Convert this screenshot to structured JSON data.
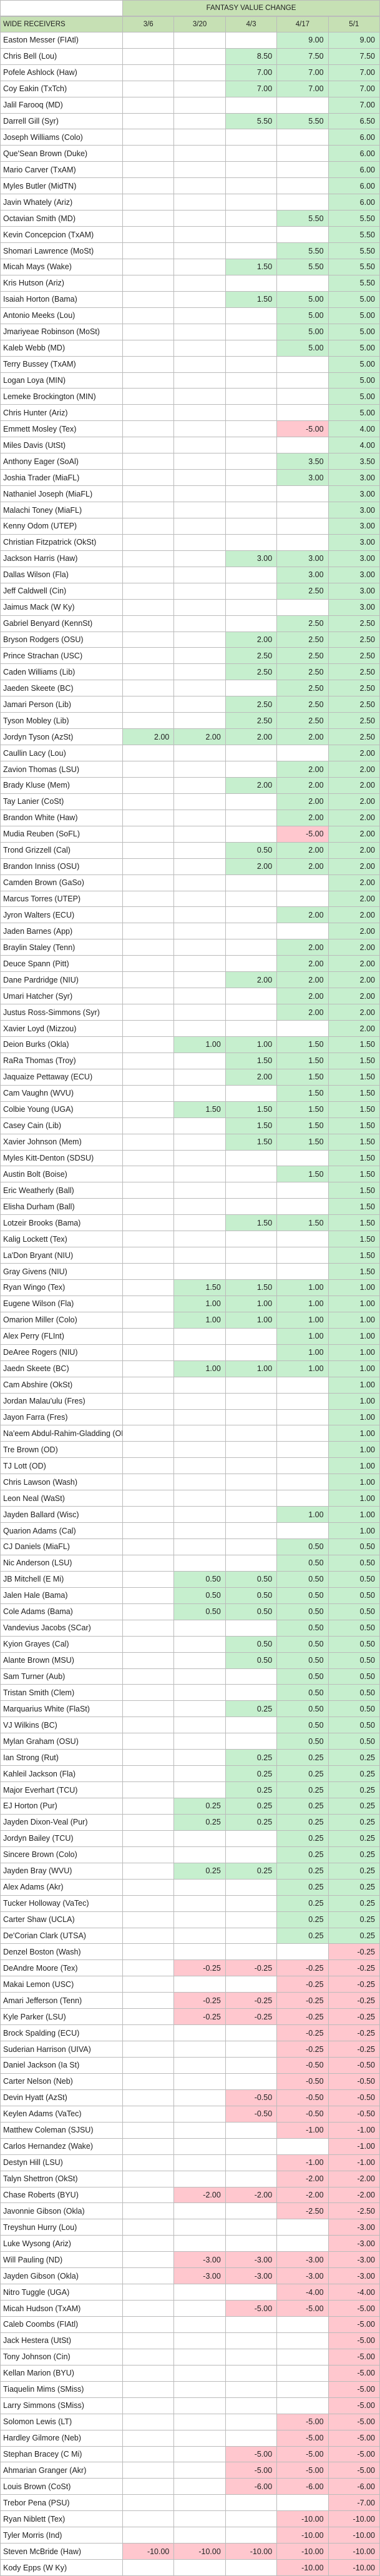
{
  "table": {
    "group_header": "FANTASY VALUE CHANGE",
    "columns": [
      "WIDE RECEIVERS",
      "3/6",
      "3/20",
      "4/3",
      "4/17",
      "5/1"
    ],
    "rows": [
      [
        "Easton Messer (FIAtl)",
        null,
        null,
        null,
        "9.00",
        "9.00"
      ],
      [
        "Chris Bell (Lou)",
        null,
        null,
        "8.50",
        "7.50",
        "7.50"
      ],
      [
        "Pofele Ashlock (Haw)",
        null,
        null,
        "7.00",
        "7.00",
        "7.00"
      ],
      [
        "Coy Eakin (TxTch)",
        null,
        null,
        "7.00",
        "7.00",
        "7.00"
      ],
      [
        "Jalil Farooq (MD)",
        null,
        null,
        null,
        null,
        "7.00"
      ],
      [
        "Darrell Gill (Syr)",
        null,
        null,
        "5.50",
        "5.50",
        "6.50"
      ],
      [
        "Joseph Williams (Colo)",
        null,
        null,
        null,
        null,
        "6.00"
      ],
      [
        "Que'Sean Brown (Duke)",
        null,
        null,
        null,
        null,
        "6.00"
      ],
      [
        "Mario Carver (TxAM)",
        null,
        null,
        null,
        null,
        "6.00"
      ],
      [
        "Myles Butler (MidTN)",
        null,
        null,
        null,
        null,
        "6.00"
      ],
      [
        "Javin Whately (Ariz)",
        null,
        null,
        null,
        null,
        "6.00"
      ],
      [
        "Octavian Smith (MD)",
        null,
        null,
        null,
        "5.50",
        "5.50"
      ],
      [
        "Kevin Concepcion (TxAM)",
        null,
        null,
        null,
        null,
        "5.50"
      ],
      [
        "Shomari Lawrence (MoSt)",
        null,
        null,
        null,
        "5.50",
        "5.50"
      ],
      [
        "Micah Mays (Wake)",
        null,
        null,
        "1.50",
        "5.50",
        "5.50"
      ],
      [
        "Kris Hutson (Ariz)",
        null,
        null,
        null,
        null,
        "5.50"
      ],
      [
        "Isaiah Horton (Bama)",
        null,
        null,
        "1.50",
        "5.00",
        "5.00"
      ],
      [
        "Antonio Meeks (Lou)",
        null,
        null,
        null,
        "5.00",
        "5.00"
      ],
      [
        "Jmariyeae Robinson (MoSt)",
        null,
        null,
        null,
        "5.00",
        "5.00"
      ],
      [
        "Kaleb Webb (MD)",
        null,
        null,
        null,
        "5.00",
        "5.00"
      ],
      [
        "Terry Bussey (TxAM)",
        null,
        null,
        null,
        null,
        "5.00"
      ],
      [
        "Logan Loya (MIN)",
        null,
        null,
        null,
        null,
        "5.00"
      ],
      [
        "Lemeke Brockington (MIN)",
        null,
        null,
        null,
        null,
        "5.00"
      ],
      [
        "Chris Hunter (Ariz)",
        null,
        null,
        null,
        null,
        "5.00"
      ],
      [
        "Emmett Mosley (Tex)",
        null,
        null,
        null,
        "-5.00",
        "4.00"
      ],
      [
        "Miles Davis (UtSt)",
        null,
        null,
        null,
        null,
        "4.00"
      ],
      [
        "Anthony Eager (SoAl)",
        null,
        null,
        null,
        "3.50",
        "3.50"
      ],
      [
        "Joshia Trader (MiaFL)",
        null,
        null,
        null,
        "3.00",
        "3.00"
      ],
      [
        "Nathaniel Joseph (MiaFL)",
        null,
        null,
        null,
        null,
        "3.00"
      ],
      [
        "Malachi Toney (MiaFL)",
        null,
        null,
        null,
        null,
        "3.00"
      ],
      [
        "Kenny Odom (UTEP)",
        null,
        null,
        null,
        null,
        "3.00"
      ],
      [
        "Christian Fitzpatrick (OkSt)",
        null,
        null,
        null,
        null,
        "3.00"
      ],
      [
        "Jackson Harris (Haw)",
        null,
        null,
        "3.00",
        "3.00",
        "3.00"
      ],
      [
        "Dallas Wilson (Fla)",
        null,
        null,
        null,
        "3.00",
        "3.00"
      ],
      [
        "Jeff Caldwell (Cin)",
        null,
        null,
        null,
        "2.50",
        "3.00"
      ],
      [
        "Jaimus Mack (W Ky)",
        null,
        null,
        null,
        null,
        "3.00"
      ],
      [
        "Gabriel Benyard (KennSt)",
        null,
        null,
        null,
        "2.50",
        "2.50"
      ],
      [
        "Bryson Rodgers (OSU)",
        null,
        null,
        "2.00",
        "2.50",
        "2.50"
      ],
      [
        "Prince Strachan (USC)",
        null,
        null,
        "2.50",
        "2.50",
        "2.50"
      ],
      [
        "Caden Williams (Lib)",
        null,
        null,
        "2.50",
        "2.50",
        "2.50"
      ],
      [
        "Jaeden Skeete (BC)",
        null,
        null,
        null,
        "2.50",
        "2.50"
      ],
      [
        "Jamari Person (Lib)",
        null,
        null,
        "2.50",
        "2.50",
        "2.50"
      ],
      [
        "Tyson Mobley (Lib)",
        null,
        null,
        "2.50",
        "2.50",
        "2.50"
      ],
      [
        "Jordyn Tyson (AzSt)",
        "2.00",
        "2.00",
        "2.00",
        "2.00",
        "2.50"
      ],
      [
        "Caullin Lacy (Lou)",
        null,
        null,
        null,
        null,
        "2.00"
      ],
      [
        "Zavion Thomas (LSU)",
        null,
        null,
        null,
        "2.00",
        "2.00"
      ],
      [
        "Brady Kluse (Mem)",
        null,
        null,
        "2.00",
        "2.00",
        "2.00"
      ],
      [
        "Tay Lanier (CoSt)",
        null,
        null,
        null,
        "2.00",
        "2.00"
      ],
      [
        "Brandon White (Haw)",
        null,
        null,
        null,
        "2.00",
        "2.00"
      ],
      [
        "Mudia Reuben (SoFL)",
        null,
        null,
        null,
        "-5.00",
        "2.00"
      ],
      [
        "Trond Grizzell (Cal)",
        null,
        null,
        "0.50",
        "2.00",
        "2.00"
      ],
      [
        "Brandon Inniss (OSU)",
        null,
        null,
        "2.00",
        "2.00",
        "2.00"
      ],
      [
        "Camden Brown (GaSo)",
        null,
        null,
        null,
        null,
        "2.00"
      ],
      [
        "Marcus Torres (UTEP)",
        null,
        null,
        null,
        null,
        "2.00"
      ],
      [
        "Jyron Walters (ECU)",
        null,
        null,
        null,
        "2.00",
        "2.00"
      ],
      [
        "Jaden Barnes (App)",
        null,
        null,
        null,
        null,
        "2.00"
      ],
      [
        "Braylin Staley (Tenn)",
        null,
        null,
        null,
        "2.00",
        "2.00"
      ],
      [
        "Deuce Spann (Pitt)",
        null,
        null,
        null,
        "2.00",
        "2.00"
      ],
      [
        "Dane Pardridge (NIU)",
        null,
        null,
        "2.00",
        "2.00",
        "2.00"
      ],
      [
        "Umari Hatcher (Syr)",
        null,
        null,
        null,
        "2.00",
        "2.00"
      ],
      [
        "Justus Ross-Simmons (Syr)",
        null,
        null,
        null,
        "2.00",
        "2.00"
      ],
      [
        "Xavier Loyd (Mizzou)",
        null,
        null,
        null,
        null,
        "2.00"
      ],
      [
        "Deion Burks (Okla)",
        null,
        "1.00",
        "1.00",
        "1.50",
        "1.50"
      ],
      [
        "RaRa Thomas (Troy)",
        null,
        null,
        "1.50",
        "1.50",
        "1.50"
      ],
      [
        "Jaquaize Pettaway (ECU)",
        null,
        null,
        "2.00",
        "1.50",
        "1.50"
      ],
      [
        "Cam Vaughn (WVU)",
        null,
        null,
        null,
        "1.50",
        "1.50"
      ],
      [
        "Colbie Young (UGA)",
        null,
        "1.50",
        "1.50",
        "1.50",
        "1.50"
      ],
      [
        "Casey Cain (Lib)",
        null,
        null,
        "1.50",
        "1.50",
        "1.50"
      ],
      [
        "Xavier Johnson (Mem)",
        null,
        null,
        "1.50",
        "1.50",
        "1.50"
      ],
      [
        "Myles Kitt-Denton (SDSU)",
        null,
        null,
        null,
        null,
        "1.50"
      ],
      [
        "Austin Bolt (Boise)",
        null,
        null,
        null,
        "1.50",
        "1.50"
      ],
      [
        "Eric Weatherly (Ball)",
        null,
        null,
        null,
        null,
        "1.50"
      ],
      [
        "Elisha Durham (Ball)",
        null,
        null,
        null,
        null,
        "1.50"
      ],
      [
        "Lotzeir Brooks (Bama)",
        null,
        null,
        "1.50",
        "1.50",
        "1.50"
      ],
      [
        "Kalig Lockett (Tex)",
        null,
        null,
        null,
        null,
        "1.50"
      ],
      [
        "La'Don Bryant (NIU)",
        null,
        null,
        null,
        null,
        "1.50"
      ],
      [
        "Gray Givens (NIU)",
        null,
        null,
        null,
        null,
        "1.50"
      ],
      [
        "Ryan Wingo (Tex)",
        null,
        "1.50",
        "1.50",
        "1.00",
        "1.00"
      ],
      [
        "Eugene Wilson (Fla)",
        null,
        "1.00",
        "1.00",
        "1.00",
        "1.00"
      ],
      [
        "Omarion Miller (Colo)",
        null,
        "1.00",
        "1.00",
        "1.00",
        "1.00"
      ],
      [
        "Alex Perry (FLInt)",
        null,
        null,
        null,
        "1.00",
        "1.00"
      ],
      [
        "DeAree Rogers (NIU)",
        null,
        null,
        null,
        "1.00",
        "1.00"
      ],
      [
        "Jaedn Skeete (BC)",
        null,
        "1.00",
        "1.00",
        "1.00",
        "1.00"
      ],
      [
        "Cam Abshire (OkSt)",
        null,
        null,
        null,
        null,
        "1.00"
      ],
      [
        "Jordan Malau'ulu (Fres)",
        null,
        null,
        null,
        null,
        "1.00"
      ],
      [
        "Jayon Farra (Fres)",
        null,
        null,
        null,
        null,
        "1.00"
      ],
      [
        "Na'eem Abdul-Rahim-Gladding (OD)",
        null,
        null,
        null,
        null,
        "1.00"
      ],
      [
        "Tre Brown (OD)",
        null,
        null,
        null,
        null,
        "1.00"
      ],
      [
        "TJ Lott (OD)",
        null,
        null,
        null,
        null,
        "1.00"
      ],
      [
        "Chris Lawson (Wash)",
        null,
        null,
        null,
        null,
        "1.00"
      ],
      [
        "Leon Neal (WaSt)",
        null,
        null,
        null,
        null,
        "1.00"
      ],
      [
        "Jayden Ballard (Wisc)",
        null,
        null,
        null,
        "1.00",
        "1.00"
      ],
      [
        "Quarion Adams (Cal)",
        null,
        null,
        null,
        null,
        "1.00"
      ],
      [
        "CJ Daniels (MiaFL)",
        null,
        null,
        null,
        "0.50",
        "0.50"
      ],
      [
        "Nic Anderson (LSU)",
        null,
        null,
        null,
        "0.50",
        "0.50"
      ],
      [
        "JB Mitchell (E Mi)",
        null,
        "0.50",
        "0.50",
        "0.50",
        "0.50"
      ],
      [
        "Jalen Hale (Bama)",
        null,
        "0.50",
        "0.50",
        "0.50",
        "0.50"
      ],
      [
        "Cole Adams (Bama)",
        null,
        "0.50",
        "0.50",
        "0.50",
        "0.50"
      ],
      [
        "Vandevius Jacobs (SCar)",
        null,
        null,
        null,
        "0.50",
        "0.50"
      ],
      [
        "Kyion Grayes (Cal)",
        null,
        null,
        "0.50",
        "0.50",
        "0.50"
      ],
      [
        "Alante Brown (MSU)",
        null,
        null,
        "0.50",
        "0.50",
        "0.50"
      ],
      [
        "Sam Turner (Aub)",
        null,
        null,
        null,
        "0.50",
        "0.50"
      ],
      [
        "Tristan Smith (Clem)",
        null,
        null,
        null,
        "0.50",
        "0.50"
      ],
      [
        "Marquarius White (FlaSt)",
        null,
        null,
        "0.25",
        "0.50",
        "0.50"
      ],
      [
        "VJ Wilkins (BC)",
        null,
        null,
        null,
        "0.50",
        "0.50"
      ],
      [
        "Mylan Graham (OSU)",
        null,
        null,
        null,
        "0.50",
        "0.50"
      ],
      [
        "Ian Strong (Rut)",
        null,
        null,
        "0.25",
        "0.25",
        "0.25"
      ],
      [
        "Kahleil Jackson (Fla)",
        null,
        null,
        "0.25",
        "0.25",
        "0.25"
      ],
      [
        "Major Everhart (TCU)",
        null,
        null,
        "0.25",
        "0.25",
        "0.25"
      ],
      [
        "EJ Horton (Pur)",
        null,
        "0.25",
        "0.25",
        "0.25",
        "0.25"
      ],
      [
        "Jayden Dixon-Veal (Pur)",
        null,
        "0.25",
        "0.25",
        "0.25",
        "0.25"
      ],
      [
        "Jordyn Bailey (TCU)",
        null,
        null,
        null,
        "0.25",
        "0.25"
      ],
      [
        "Sincere Brown (Colo)",
        null,
        null,
        null,
        "0.25",
        "0.25"
      ],
      [
        "Jayden Bray (WVU)",
        null,
        "0.25",
        "0.25",
        "0.25",
        "0.25"
      ],
      [
        "Alex Adams (Akr)",
        null,
        null,
        null,
        "0.25",
        "0.25"
      ],
      [
        "Tucker Holloway (VaTec)",
        null,
        null,
        null,
        "0.25",
        "0.25"
      ],
      [
        "Carter Shaw (UCLA)",
        null,
        null,
        null,
        "0.25",
        "0.25"
      ],
      [
        "De'Corian Clark (UTSA)",
        null,
        null,
        null,
        "0.25",
        "0.25"
      ],
      [
        "Denzel Boston (Wash)",
        null,
        null,
        null,
        null,
        "-0.25"
      ],
      [
        "DeAndre Moore (Tex)",
        null,
        "-0.25",
        "-0.25",
        "-0.25",
        "-0.25"
      ],
      [
        "Makai Lemon (USC)",
        null,
        null,
        null,
        "-0.25",
        "-0.25"
      ],
      [
        "Amari Jefferson (Tenn)",
        null,
        "-0.25",
        "-0.25",
        "-0.25",
        "-0.25"
      ],
      [
        "Kyle Parker (LSU)",
        null,
        "-0.25",
        "-0.25",
        "-0.25",
        "-0.25"
      ],
      [
        "Brock Spalding (ECU)",
        null,
        null,
        null,
        "-0.25",
        "-0.25"
      ],
      [
        "Suderian Harrison (UIVA)",
        null,
        null,
        null,
        "-0.25",
        "-0.25"
      ],
      [
        "Daniel Jackson (Ia St)",
        null,
        null,
        null,
        "-0.50",
        "-0.50"
      ],
      [
        "Carter Nelson (Neb)",
        null,
        null,
        null,
        "-0.50",
        "-0.50"
      ],
      [
        "Devin Hyatt (AzSt)",
        null,
        null,
        "-0.50",
        "-0.50",
        "-0.50"
      ],
      [
        "Keylen Adams (VaTec)",
        null,
        null,
        "-0.50",
        "-0.50",
        "-0.50"
      ],
      [
        "Matthew Coleman (SJSU)",
        null,
        null,
        null,
        "-1.00",
        "-1.00"
      ],
      [
        "Carlos Hernandez (Wake)",
        null,
        null,
        null,
        null,
        "-1.00"
      ],
      [
        "Destyn Hill (LSU)",
        null,
        null,
        null,
        "-1.00",
        "-1.00"
      ],
      [
        "Talyn Shettron (OkSt)",
        null,
        null,
        null,
        "-2.00",
        "-2.00"
      ],
      [
        "Chase Roberts (BYU)",
        null,
        "-2.00",
        "-2.00",
        "-2.00",
        "-2.00"
      ],
      [
        "Javonnie Gibson (Okla)",
        null,
        null,
        null,
        "-2.50",
        "-2.50"
      ],
      [
        "Treyshun Hurry (Lou)",
        null,
        null,
        null,
        null,
        "-3.00"
      ],
      [
        "Luke Wysong (Ariz)",
        null,
        null,
        null,
        null,
        "-3.00"
      ],
      [
        "Will Pauling (ND)",
        null,
        "-3.00",
        "-3.00",
        "-3.00",
        "-3.00"
      ],
      [
        "Jayden Gibson (Okla)",
        null,
        "-3.00",
        "-3.00",
        "-3.00",
        "-3.00"
      ],
      [
        "Nitro Tuggle (UGA)",
        null,
        null,
        null,
        "-4.00",
        "-4.00"
      ],
      [
        "Micah Hudson (TxAM)",
        null,
        null,
        "-5.00",
        "-5.00",
        "-5.00"
      ],
      [
        "Caleb Coombs (FIAtl)",
        null,
        null,
        null,
        null,
        "-5.00"
      ],
      [
        "Jack Hestera (UtSt)",
        null,
        null,
        null,
        null,
        "-5.00"
      ],
      [
        "Tony Johnson (Cin)",
        null,
        null,
        null,
        null,
        "-5.00"
      ],
      [
        "Kellan Marion (BYU)",
        null,
        null,
        null,
        null,
        "-5.00"
      ],
      [
        "Tiaquelin Mims (SMiss)",
        null,
        null,
        null,
        null,
        "-5.00"
      ],
      [
        "Larry Simmons (SMiss)",
        null,
        null,
        null,
        null,
        "-5.00"
      ],
      [
        "Solomon Lewis (LT)",
        null,
        null,
        null,
        "-5.00",
        "-5.00"
      ],
      [
        "Hardley Gilmore (Neb)",
        null,
        null,
        null,
        "-5.00",
        "-5.00"
      ],
      [
        "Stephan Bracey (C Mi)",
        null,
        null,
        "-5.00",
        "-5.00",
        "-5.00"
      ],
      [
        "Ahmarian Granger (Akr)",
        null,
        null,
        "-5.00",
        "-5.00",
        "-5.00"
      ],
      [
        "Louis Brown (CoSt)",
        null,
        null,
        "-6.00",
        "-6.00",
        "-6.00"
      ],
      [
        "Trebor Pena (PSU)",
        null,
        null,
        null,
        null,
        "-7.00"
      ],
      [
        "Ryan Niblett (Tex)",
        null,
        null,
        null,
        "-10.00",
        "-10.00"
      ],
      [
        "Tyler Morris (Ind)",
        null,
        null,
        null,
        "-10.00",
        "-10.00"
      ],
      [
        "Steven McBride (Haw)",
        "-10.00",
        "-10.00",
        "-10.00",
        "-10.00",
        "-10.00"
      ],
      [
        "Kody Epps (W Ky)",
        null,
        null,
        null,
        "-10.00",
        "-10.00"
      ]
    ]
  }
}
